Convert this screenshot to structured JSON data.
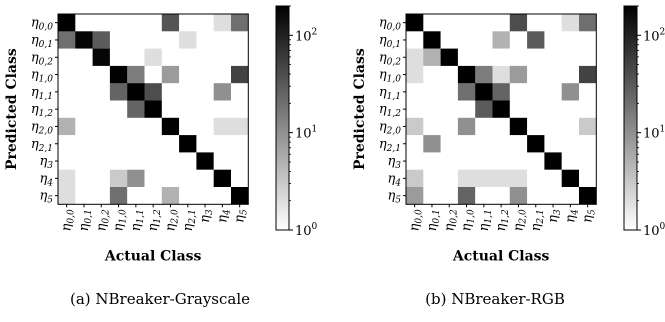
{
  "chart_data": [
    {
      "type": "heatmap",
      "caption": "(a) NBreaker-Grayscale",
      "xlabel": "Actual Class",
      "ylabel": "Predicted Class",
      "classes": [
        {
          "base": "η",
          "sub": "0,0"
        },
        {
          "base": "η",
          "sub": "0,1"
        },
        {
          "base": "η",
          "sub": "0,2"
        },
        {
          "base": "η",
          "sub": "1,0"
        },
        {
          "base": "η",
          "sub": "1,1"
        },
        {
          "base": "η",
          "sub": "1,2"
        },
        {
          "base": "η",
          "sub": "2,0"
        },
        {
          "base": "η",
          "sub": "2,1"
        },
        {
          "base": "η",
          "sub": "3"
        },
        {
          "base": "η",
          "sub": "4"
        },
        {
          "base": "η",
          "sub": "5"
        }
      ],
      "colorbar": {
        "scale": "log",
        "range": [
          1,
          200
        ],
        "ticks": [
          {
            "base": "10",
            "exp": "0"
          },
          {
            "base": "10",
            "exp": "1"
          },
          {
            "base": "10",
            "exp": "2"
          }
        ],
        "tick_values": [
          1,
          10,
          100
        ]
      },
      "matrix": [
        [
          200,
          0,
          0,
          0,
          1,
          0,
          35,
          0,
          0,
          2,
          20
        ],
        [
          20,
          180,
          30,
          0,
          0,
          0,
          0,
          2,
          0,
          0,
          0
        ],
        [
          0,
          0,
          180,
          0,
          0,
          2,
          0,
          0,
          0,
          0,
          0
        ],
        [
          1,
          0,
          0,
          190,
          15,
          1,
          8,
          0,
          0,
          0,
          50
        ],
        [
          0,
          0,
          0,
          25,
          200,
          40,
          0,
          0,
          0,
          10,
          0
        ],
        [
          1,
          1,
          0,
          0,
          25,
          200,
          0,
          0,
          0,
          0,
          0
        ],
        [
          5,
          0,
          0,
          0,
          0,
          1,
          190,
          0,
          0,
          2,
          2
        ],
        [
          0,
          0,
          1,
          0,
          0,
          0,
          0,
          200,
          0,
          0,
          0
        ],
        [
          0,
          0,
          0,
          0,
          0,
          0,
          0,
          0,
          200,
          0,
          0
        ],
        [
          2,
          0,
          0,
          3,
          10,
          0,
          0,
          0,
          0,
          200,
          0
        ],
        [
          2,
          0,
          0,
          20,
          0,
          0,
          5,
          0,
          0,
          0,
          200
        ]
      ]
    },
    {
      "type": "heatmap",
      "caption": "(b) NBreaker-RGB",
      "xlabel": "Actual Class",
      "ylabel": "Predicted Class",
      "classes": [
        {
          "base": "η",
          "sub": "0,0"
        },
        {
          "base": "η",
          "sub": "0,1"
        },
        {
          "base": "η",
          "sub": "0,2"
        },
        {
          "base": "η",
          "sub": "1,0"
        },
        {
          "base": "η",
          "sub": "1,1"
        },
        {
          "base": "η",
          "sub": "1,2"
        },
        {
          "base": "η",
          "sub": "2,0"
        },
        {
          "base": "η",
          "sub": "2,1"
        },
        {
          "base": "η",
          "sub": "3"
        },
        {
          "base": "η",
          "sub": "4"
        },
        {
          "base": "η",
          "sub": "5"
        }
      ],
      "colorbar": {
        "scale": "log",
        "range": [
          1,
          200
        ],
        "ticks": [
          {
            "base": "10",
            "exp": "0"
          },
          {
            "base": "10",
            "exp": "1"
          },
          {
            "base": "10",
            "exp": "2"
          }
        ],
        "tick_values": [
          1,
          10,
          100
        ]
      },
      "matrix": [
        [
          200,
          0,
          0,
          0,
          0,
          0,
          40,
          0,
          0,
          2,
          20
        ],
        [
          0,
          200,
          1,
          1,
          1,
          5,
          0,
          30,
          0,
          0,
          0
        ],
        [
          2,
          5,
          200,
          0,
          0,
          0,
          0,
          0,
          0,
          0,
          0
        ],
        [
          2,
          0,
          0,
          200,
          15,
          2,
          8,
          0,
          1,
          1,
          50
        ],
        [
          1,
          0,
          0,
          20,
          200,
          25,
          0,
          0,
          0,
          10,
          1
        ],
        [
          1,
          1,
          0,
          0,
          30,
          200,
          1,
          0,
          0,
          0,
          0
        ],
        [
          3,
          0,
          0,
          10,
          0,
          0,
          200,
          0,
          0,
          1,
          3
        ],
        [
          0,
          10,
          0,
          0,
          0,
          0,
          0,
          200,
          0,
          0,
          0
        ],
        [
          0,
          0,
          0,
          0,
          0,
          0,
          0,
          0,
          200,
          0,
          0
        ],
        [
          3,
          0,
          0,
          2,
          2,
          2,
          2,
          0,
          0,
          200,
          0
        ],
        [
          8,
          0,
          0,
          25,
          1,
          0,
          10,
          0,
          1,
          0,
          200
        ]
      ]
    }
  ]
}
